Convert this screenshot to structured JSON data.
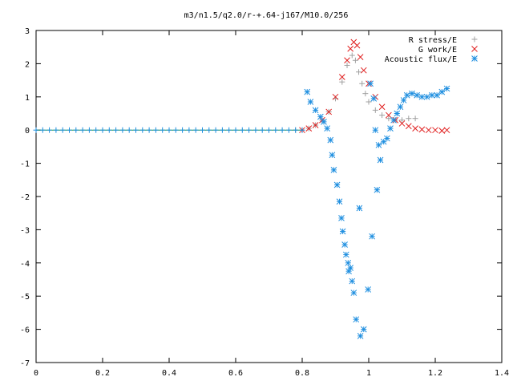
{
  "chart_data": {
    "type": "scatter",
    "title": "m3/n1.5/q2.0/r-+.64-j167/M10.0/256",
    "xlabel": "",
    "ylabel": "",
    "xlim": [
      0,
      1.4
    ],
    "ylim": [
      -7,
      3
    ],
    "x_ticks": [
      "0",
      "0.2",
      "0.4",
      "0.6",
      "0.8",
      "1",
      "1.2",
      "1.4"
    ],
    "y_ticks": [
      "3",
      "2",
      "1",
      "0",
      "-1",
      "-2",
      "-3",
      "-4",
      "-5",
      "-6",
      "-7"
    ],
    "grid": false,
    "legend_position": "top-right",
    "series": [
      {
        "name": "R stress/E",
        "marker": "plus",
        "color": "#a0a0a0",
        "points": [
          [
            0.78,
            0.0
          ],
          [
            0.8,
            0.0
          ],
          [
            0.82,
            0.05
          ],
          [
            0.84,
            0.15
          ],
          [
            0.86,
            0.3
          ],
          [
            0.88,
            0.55
          ],
          [
            0.9,
            0.95
          ],
          [
            0.92,
            1.45
          ],
          [
            0.935,
            1.95
          ],
          [
            0.95,
            2.25
          ],
          [
            0.96,
            2.1
          ],
          [
            0.97,
            1.75
          ],
          [
            0.98,
            1.4
          ],
          [
            0.99,
            1.1
          ],
          [
            1.0,
            0.85
          ],
          [
            1.02,
            0.6
          ],
          [
            1.04,
            0.45
          ],
          [
            1.06,
            0.35
          ],
          [
            1.08,
            0.3
          ],
          [
            1.1,
            0.3
          ],
          [
            1.12,
            0.35
          ],
          [
            1.14,
            0.35
          ]
        ]
      },
      {
        "name": "G work/E",
        "marker": "cross",
        "color": "#e02020",
        "points": [
          [
            0.8,
            0.0
          ],
          [
            0.82,
            0.05
          ],
          [
            0.84,
            0.15
          ],
          [
            0.86,
            0.3
          ],
          [
            0.88,
            0.55
          ],
          [
            0.9,
            1.0
          ],
          [
            0.92,
            1.6
          ],
          [
            0.935,
            2.1
          ],
          [
            0.945,
            2.45
          ],
          [
            0.955,
            2.65
          ],
          [
            0.965,
            2.55
          ],
          [
            0.975,
            2.2
          ],
          [
            0.985,
            1.8
          ],
          [
            1.0,
            1.4
          ],
          [
            1.02,
            1.0
          ],
          [
            1.04,
            0.7
          ],
          [
            1.06,
            0.45
          ],
          [
            1.08,
            0.3
          ],
          [
            1.1,
            0.2
          ],
          [
            1.12,
            0.12
          ],
          [
            1.14,
            0.05
          ],
          [
            1.16,
            0.02
          ],
          [
            1.18,
            0.0
          ],
          [
            1.2,
            0.0
          ],
          [
            1.22,
            -0.02
          ],
          [
            1.235,
            0.0
          ]
        ]
      },
      {
        "name": "Acoustic flux/E",
        "marker": "star",
        "color": "#1f8fe0",
        "points": [
          [
            0.815,
            1.15
          ],
          [
            0.825,
            0.85
          ],
          [
            0.84,
            0.6
          ],
          [
            0.855,
            0.4
          ],
          [
            0.865,
            0.25
          ],
          [
            0.875,
            0.05
          ],
          [
            0.885,
            -0.3
          ],
          [
            0.89,
            -0.75
          ],
          [
            0.895,
            -1.2
          ],
          [
            0.905,
            -1.65
          ],
          [
            0.912,
            -2.15
          ],
          [
            0.918,
            -2.65
          ],
          [
            0.922,
            -3.05
          ],
          [
            0.928,
            -3.45
          ],
          [
            0.932,
            -3.75
          ],
          [
            0.938,
            -4.0
          ],
          [
            0.94,
            -4.25
          ],
          [
            0.945,
            -4.15
          ],
          [
            0.95,
            -4.55
          ],
          [
            0.955,
            -4.9
          ],
          [
            0.962,
            -5.7
          ],
          [
            0.972,
            -2.35
          ],
          [
            0.975,
            -6.2
          ],
          [
            0.985,
            -6.0
          ],
          [
            0.998,
            -4.8
          ],
          [
            1.005,
            1.4
          ],
          [
            1.01,
            -3.2
          ],
          [
            1.015,
            0.95
          ],
          [
            1.02,
            0.0
          ],
          [
            1.025,
            -1.8
          ],
          [
            1.03,
            -0.45
          ],
          [
            1.035,
            -0.9
          ],
          [
            1.045,
            -0.35
          ],
          [
            1.055,
            -0.25
          ],
          [
            1.065,
            0.05
          ],
          [
            1.075,
            0.3
          ],
          [
            1.085,
            0.5
          ],
          [
            1.095,
            0.7
          ],
          [
            1.105,
            0.9
          ],
          [
            1.115,
            1.05
          ],
          [
            1.13,
            1.1
          ],
          [
            1.145,
            1.05
          ],
          [
            1.16,
            1.0
          ],
          [
            1.175,
            1.0
          ],
          [
            1.19,
            1.05
          ],
          [
            1.205,
            1.05
          ],
          [
            1.22,
            1.15
          ],
          [
            1.235,
            1.25
          ]
        ]
      },
      {
        "name": "",
        "marker": "dot",
        "color": "#1f8fe0",
        "line_color": "#2aa02a",
        "points": [
          [
            0.0,
            0.0
          ],
          [
            0.02,
            0.0
          ],
          [
            0.04,
            0.0
          ],
          [
            0.06,
            0.0
          ],
          [
            0.08,
            0.0
          ],
          [
            0.1,
            0.0
          ],
          [
            0.12,
            0.0
          ],
          [
            0.14,
            0.0
          ],
          [
            0.16,
            0.0
          ],
          [
            0.18,
            0.0
          ],
          [
            0.2,
            0.0
          ],
          [
            0.22,
            0.0
          ],
          [
            0.24,
            0.0
          ],
          [
            0.26,
            0.0
          ],
          [
            0.28,
            0.0
          ],
          [
            0.3,
            0.0
          ],
          [
            0.32,
            0.0
          ],
          [
            0.34,
            0.0
          ],
          [
            0.36,
            0.0
          ],
          [
            0.38,
            0.0
          ],
          [
            0.4,
            0.0
          ],
          [
            0.42,
            0.0
          ],
          [
            0.44,
            0.0
          ],
          [
            0.46,
            0.0
          ],
          [
            0.48,
            0.0
          ],
          [
            0.5,
            0.0
          ],
          [
            0.52,
            0.0
          ],
          [
            0.54,
            0.0
          ],
          [
            0.56,
            0.0
          ],
          [
            0.58,
            0.0
          ],
          [
            0.6,
            0.0
          ],
          [
            0.62,
            0.0
          ],
          [
            0.64,
            0.0
          ],
          [
            0.66,
            0.0
          ],
          [
            0.68,
            0.0
          ],
          [
            0.7,
            0.0
          ],
          [
            0.72,
            0.0
          ],
          [
            0.74,
            0.0
          ],
          [
            0.76,
            0.0
          ],
          [
            0.78,
            0.0
          ],
          [
            0.8,
            0.0
          ]
        ]
      }
    ]
  }
}
